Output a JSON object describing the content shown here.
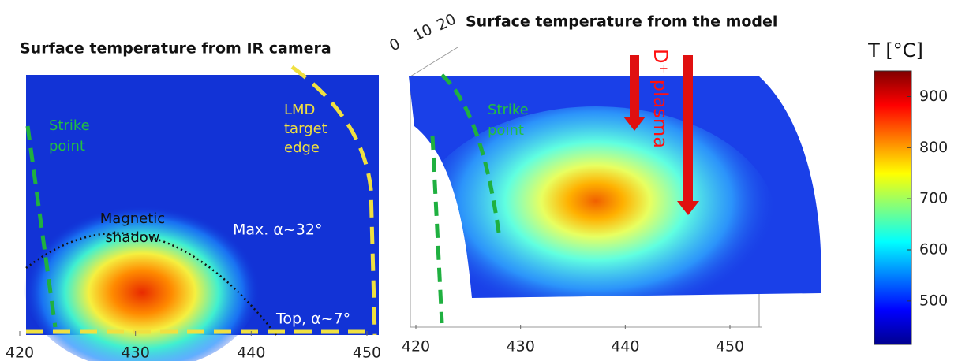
{
  "left_panel": {
    "title": "Surface temperature from IR camera",
    "xticks": [
      420,
      430,
      440,
      450
    ],
    "annotations": {
      "strike_point": [
        "Strike",
        "point"
      ],
      "target_edge": [
        "LMD",
        "target",
        "edge"
      ],
      "shadow": [
        "Magnetic",
        "shadow"
      ],
      "max_angle": "Max. α~32°",
      "top_angle": "Top, α~7°"
    }
  },
  "right_panel": {
    "title": "Surface temperature from the model",
    "xticks": [
      420,
      430,
      440,
      450
    ],
    "depth_ticks": [
      0,
      10,
      20
    ],
    "annotations": {
      "strike_point": [
        "Strike",
        "point"
      ],
      "plasma": "D⁺ plasma"
    }
  },
  "colorbar": {
    "label": "T [°C]",
    "lim": [
      415,
      950
    ],
    "ticks": [
      500,
      600,
      700,
      800,
      900
    ]
  }
}
